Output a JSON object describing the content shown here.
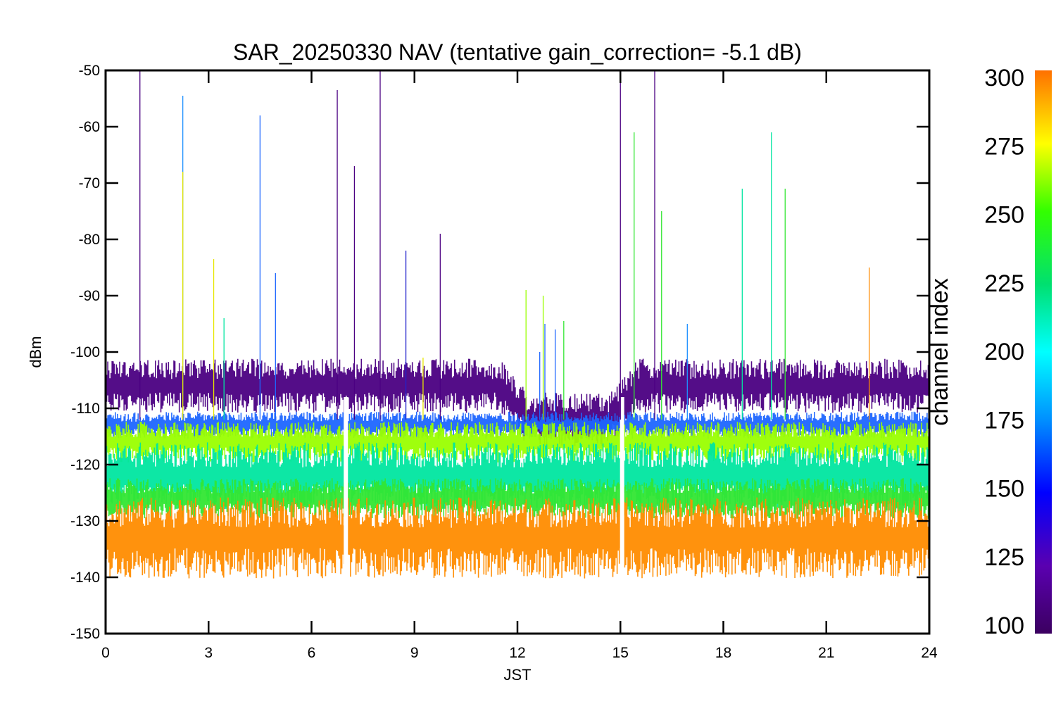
{
  "chart_data": {
    "type": "line",
    "title": "SAR_20250330 NAV (tentative gain_correction= -5.1 dB)",
    "xlabel": "JST",
    "ylabel": "dBm",
    "xlim": [
      0,
      24
    ],
    "ylim": [
      -150,
      -50
    ],
    "x_ticks": [
      "0",
      "3",
      "6",
      "9",
      "12",
      "15",
      "18",
      "21",
      "24"
    ],
    "y_ticks": [
      "-50",
      "-60",
      "-70",
      "-80",
      "-90",
      "-100",
      "-110",
      "-120",
      "-130",
      "-140",
      "-150"
    ],
    "colorbar": {
      "label": "channel index",
      "range": [
        100,
        300
      ],
      "ticks": [
        "300",
        "275",
        "250",
        "225",
        "200",
        "175",
        "150",
        "125",
        "100"
      ],
      "colormap": "rainbow (purple-blue-cyan-green-yellow-orange)"
    },
    "data_gaps_hours": [
      7.0,
      15.05
    ],
    "series": [
      {
        "channel_range": [
          100,
          130
        ],
        "color": "#4b0082",
        "level_dBm": -106,
        "spread_dBm": 4,
        "dip_window_hours": [
          11.5,
          15.5
        ],
        "dip_level_dBm": -112
      },
      {
        "channel_range": [
          140,
          170
        ],
        "color": "#1e66ff",
        "level_dBm": -113,
        "spread_dBm": 2
      },
      {
        "channel_range": [
          230,
          260
        ],
        "color": "#9aff00",
        "level_dBm": -116,
        "spread_dBm": 3
      },
      {
        "channel_range": [
          170,
          210
        ],
        "color": "#00e6a0",
        "level_dBm": -122,
        "spread_dBm": 5
      },
      {
        "channel_range": [
          210,
          240
        ],
        "color": "#33e633",
        "level_dBm": -126,
        "spread_dBm": 3
      },
      {
        "channel_range": [
          270,
          300
        ],
        "color": "#ff8c00",
        "level_dBm": -133,
        "spread_dBm": 6
      }
    ],
    "spikes": [
      {
        "x": 1.0,
        "peak": -50,
        "color": "#4b0082"
      },
      {
        "x": 2.25,
        "peak": -54.5,
        "color": "#1e90ff"
      },
      {
        "x": 2.25,
        "peak": -68,
        "color": "#e6e600"
      },
      {
        "x": 3.15,
        "peak": -83.5,
        "color": "#e6e600"
      },
      {
        "x": 3.45,
        "peak": -94,
        "color": "#00e6a0"
      },
      {
        "x": 4.5,
        "peak": -58,
        "color": "#1e66ff"
      },
      {
        "x": 4.95,
        "peak": -86,
        "color": "#1e66ff"
      },
      {
        "x": 6.75,
        "peak": -53.5,
        "color": "#4b0082"
      },
      {
        "x": 7.25,
        "peak": -67,
        "color": "#4b0082"
      },
      {
        "x": 8.0,
        "peak": -50,
        "color": "#4b0082"
      },
      {
        "x": 8.75,
        "peak": -82,
        "color": "#2222cc"
      },
      {
        "x": 9.25,
        "peak": -101,
        "color": "#e6e600"
      },
      {
        "x": 9.75,
        "peak": -79,
        "color": "#4b0082"
      },
      {
        "x": 12.25,
        "peak": -89,
        "color": "#9aff00"
      },
      {
        "x": 12.65,
        "peak": -100,
        "color": "#1e66ff"
      },
      {
        "x": 12.75,
        "peak": -90,
        "color": "#9aff00"
      },
      {
        "x": 12.8,
        "peak": -95,
        "color": "#1e66ff"
      },
      {
        "x": 13.1,
        "peak": -96,
        "color": "#1e66ff"
      },
      {
        "x": 13.35,
        "peak": -94.5,
        "color": "#33e633"
      },
      {
        "x": 15.0,
        "peak": -50,
        "color": "#4b0082"
      },
      {
        "x": 15.4,
        "peak": -61,
        "color": "#33e633"
      },
      {
        "x": 16.0,
        "peak": -50,
        "color": "#4b0082"
      },
      {
        "x": 16.2,
        "peak": -75,
        "color": "#33e633"
      },
      {
        "x": 16.95,
        "peak": -95,
        "color": "#1e90ff"
      },
      {
        "x": 18.55,
        "peak": -71,
        "color": "#00e6a0"
      },
      {
        "x": 19.4,
        "peak": -61,
        "color": "#00e6a0"
      },
      {
        "x": 19.8,
        "peak": -71,
        "color": "#33e633"
      },
      {
        "x": 22.25,
        "peak": -85,
        "color": "#ff8c00"
      }
    ]
  }
}
